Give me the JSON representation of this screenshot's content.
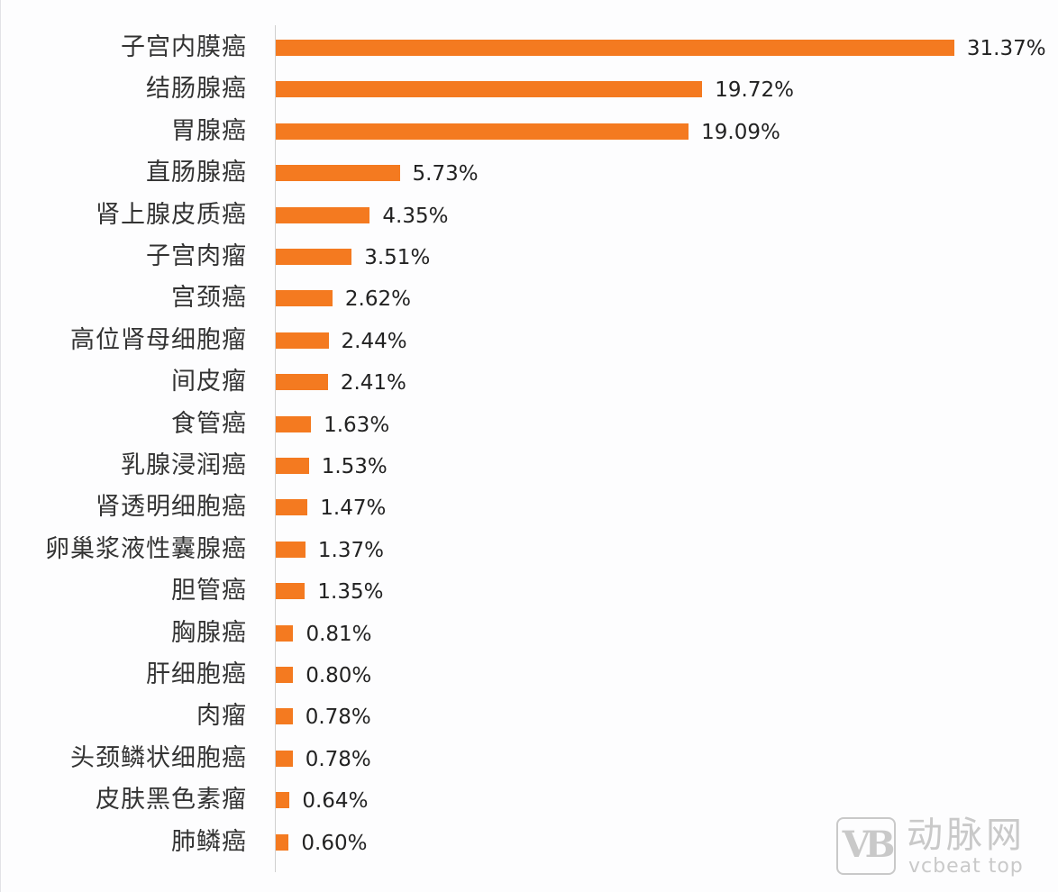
{
  "chart_data": {
    "type": "bar",
    "orientation": "horizontal",
    "title": "",
    "xlabel": "",
    "ylabel": "",
    "unit": "%",
    "grid": false,
    "legend": null,
    "bar_color": "#F47A20",
    "xlim": [
      0,
      33
    ],
    "categories": [
      "子宫内膜癌",
      "结肠腺癌",
      "胃腺癌",
      "直肠腺癌",
      "肾上腺皮质癌",
      "子宫肉瘤",
      "宫颈癌",
      "高位肾母细胞瘤",
      "间皮瘤",
      "食管癌",
      "乳腺浸润癌",
      "肾透明细胞癌",
      "卵巢浆液性囊腺癌",
      "胆管癌",
      "胸腺癌",
      "肝细胞癌",
      "肉瘤",
      "头颈鳞状细胞癌",
      "皮肤黑色素瘤",
      "肺鳞癌"
    ],
    "values": [
      31.37,
      19.72,
      19.09,
      5.73,
      4.35,
      3.51,
      2.62,
      2.44,
      2.41,
      1.63,
      1.53,
      1.47,
      1.37,
      1.35,
      0.81,
      0.8,
      0.78,
      0.78,
      0.64,
      0.6
    ],
    "value_labels": [
      "31.37%",
      "19.72%",
      "19.09%",
      "5.73%",
      "4.35%",
      "3.51%",
      "2.62%",
      "2.44%",
      "2.41%",
      "1.63%",
      "1.53%",
      "1.47%",
      "1.37%",
      "1.35%",
      "0.81%",
      "0.80%",
      "0.78%",
      "0.78%",
      "0.64%",
      "0.60%"
    ]
  },
  "watermark": {
    "logo_text": "VB",
    "name_cn": "动脉网",
    "name_en": "vcbeat top"
  }
}
